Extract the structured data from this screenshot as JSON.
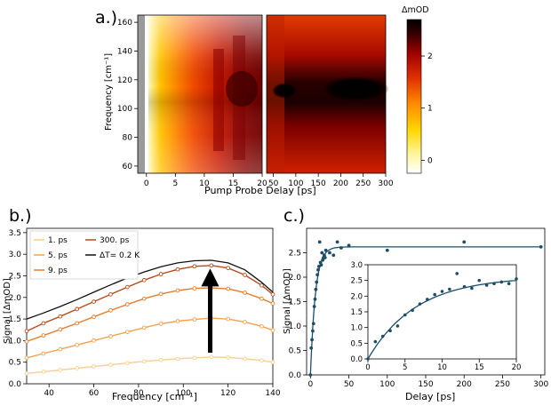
{
  "chart_data": [
    {
      "panel_label": "a.)",
      "type": "heatmap",
      "xlabel": "Pump Probe Delay [ps]",
      "ylabel": "Frequency [cm⁻¹]",
      "colorbar_label": "ΔmOD",
      "colorbar_range": [
        -0.25,
        2.7
      ],
      "colorbar_ticks": [
        0,
        1,
        2
      ],
      "colormap": [
        "#ffffff",
        "#fff6a0",
        "#ffd700",
        "#ff8c00",
        "#e03000",
        "#a00000",
        "#3a0000",
        "#000000"
      ],
      "ylim": [
        55,
        165
      ],
      "yticks": [
        60,
        80,
        100,
        120,
        140,
        160
      ],
      "left_axis": {
        "xlim": [
          -1.5,
          20
        ],
        "xticks": [
          0,
          5,
          10,
          15,
          20
        ]
      },
      "right_axis": {
        "xlim": [
          35,
          300
        ],
        "xticks": [
          50,
          100,
          150,
          200,
          250,
          300
        ]
      },
      "description_values": {
        "peak_frequency": 110,
        "saturation_value": 2.7
      }
    },
    {
      "panel_label": "b.)",
      "type": "line",
      "xlabel": "Frequency [cm⁻¹]",
      "ylabel": "Signal [ΔmOD]",
      "xlim": [
        30,
        140
      ],
      "ylim": [
        0,
        3.6
      ],
      "xticks": [
        40,
        60,
        80,
        100,
        120,
        140
      ],
      "yticks": [
        0.0,
        0.5,
        1.0,
        1.5,
        2.0,
        2.5,
        3.0,
        3.5
      ],
      "x": [
        30,
        37.5,
        45,
        52.5,
        60,
        67.5,
        75,
        82.5,
        90,
        97.5,
        105,
        112.5,
        120,
        127.5,
        135,
        140
      ],
      "series": [
        {
          "name": "1. ps",
          "color": "#f7cf8e",
          "values": [
            0.24,
            0.28,
            0.32,
            0.36,
            0.4,
            0.44,
            0.48,
            0.52,
            0.55,
            0.58,
            0.6,
            0.62,
            0.61,
            0.58,
            0.54,
            0.5
          ]
        },
        {
          "name": "5. ps",
          "color": "#f2a24e",
          "values": [
            0.6,
            0.7,
            0.8,
            0.9,
            1.0,
            1.1,
            1.2,
            1.3,
            1.39,
            1.45,
            1.49,
            1.52,
            1.5,
            1.43,
            1.33,
            1.24
          ]
        },
        {
          "name": "9. ps",
          "color": "#e57c2c",
          "values": [
            0.98,
            1.12,
            1.26,
            1.4,
            1.55,
            1.7,
            1.84,
            1.97,
            2.08,
            2.16,
            2.21,
            2.22,
            2.2,
            2.11,
            1.97,
            1.86
          ]
        },
        {
          "name": "300. ps",
          "color": "#b94a1a",
          "values": [
            1.22,
            1.4,
            1.56,
            1.73,
            1.9,
            2.07,
            2.24,
            2.4,
            2.54,
            2.65,
            2.72,
            2.74,
            2.68,
            2.52,
            2.28,
            2.07
          ]
        },
        {
          "name": "ΔT= 0.2 K",
          "color": "#111111",
          "markers": false,
          "values": [
            1.5,
            1.64,
            1.79,
            1.95,
            2.12,
            2.29,
            2.45,
            2.59,
            2.71,
            2.8,
            2.85,
            2.86,
            2.8,
            2.64,
            2.35,
            2.12
          ]
        }
      ],
      "legend_position": "top-left",
      "annotation": {
        "type": "arrow",
        "x": 112,
        "y_start": 0.72,
        "y_end": 2.75
      }
    },
    {
      "panel_label": "c.)",
      "type": "scatter",
      "xlabel": "Delay [ps]",
      "ylabel": "Signal [ΔmOD]",
      "xlim": [
        -5,
        305
      ],
      "ylim": [
        0,
        3.0
      ],
      "xticks": [
        0,
        50,
        100,
        150,
        200,
        250,
        300
      ],
      "yticks": [
        0.0,
        0.5,
        1.0,
        1.5,
        2.0,
        2.5
      ],
      "points_x": [
        0,
        1,
        2,
        3,
        4,
        5,
        6,
        7,
        8,
        9,
        10,
        11,
        12,
        13,
        14,
        15,
        16,
        17,
        18,
        19,
        20,
        25,
        30,
        35,
        40,
        50,
        100,
        200,
        300
      ],
      "points_y": [
        0.0,
        0.55,
        0.72,
        0.9,
        1.05,
        1.4,
        1.55,
        1.75,
        1.9,
        2.05,
        2.15,
        2.22,
        2.72,
        2.3,
        2.25,
        2.5,
        2.35,
        2.4,
        2.45,
        2.4,
        2.55,
        2.5,
        2.45,
        2.72,
        2.6,
        2.65,
        2.55,
        2.72,
        2.62
      ],
      "fit": {
        "model": "A*(1-exp(-t/tau))",
        "A": 2.62,
        "tau": 6.5
      },
      "inset": {
        "xlim": [
          0,
          20
        ],
        "ylim": [
          0,
          3.0
        ],
        "xticks": [
          0,
          5,
          10,
          15,
          20
        ],
        "yticks": [
          0.0,
          0.5,
          1.0,
          1.5,
          2.0,
          2.5,
          3.0
        ]
      }
    }
  ]
}
